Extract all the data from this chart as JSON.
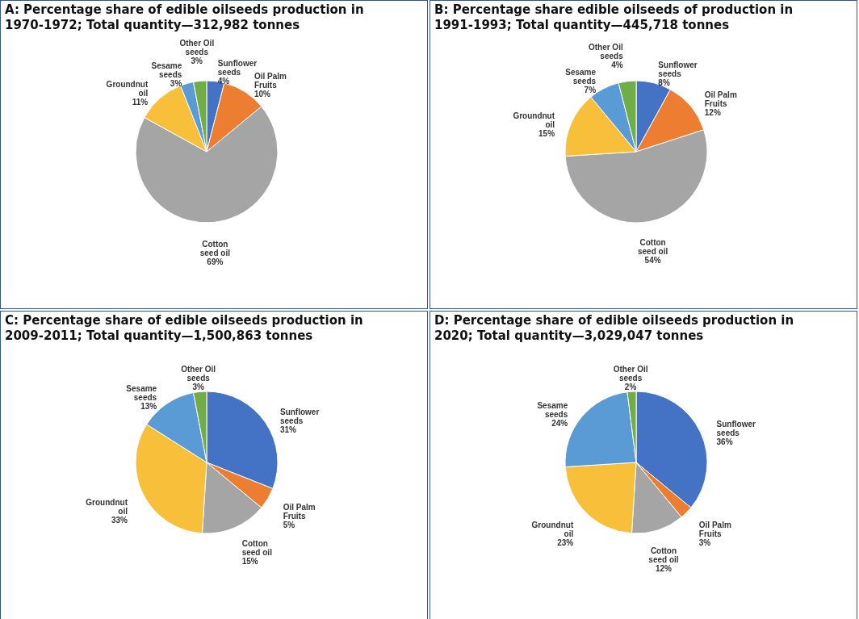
{
  "chart_data": [
    {
      "type": "pie",
      "title": "A: Percentage share of edible oilseeds production in 1970-1972; Total quantity—312,982 tonnes",
      "categories": [
        "Sunflower seeds",
        "Oil Palm Fruits",
        "Cotton seed oil",
        "Groundnut oil",
        "Sesame seeds",
        "Other Oil seeds"
      ],
      "values": [
        4,
        10,
        69,
        11,
        3,
        3
      ],
      "value_labels": [
        "4%",
        "10%",
        "69%",
        "11%",
        "3%",
        "3%"
      ],
      "colors": [
        "#4472c4",
        "#ed7d31",
        "#a5a5a5",
        "#f8bf3a",
        "#5b9bd5",
        "#70ad47"
      ]
    },
    {
      "type": "pie",
      "title": "B: Percentage share edible oilseeds of production in 1991-1993; Total quantity—445,718 tonnes",
      "categories": [
        "Sunflower seeds",
        "Oil Palm Fruits",
        "Cotton seed oil",
        "Groundnut oil",
        "Sesame seeds",
        "Other Oil seeds"
      ],
      "values": [
        8,
        12,
        54,
        15,
        7,
        4
      ],
      "value_labels": [
        "8%",
        "12%",
        "54%",
        "15%",
        "7%",
        "4%"
      ],
      "colors": [
        "#4472c4",
        "#ed7d31",
        "#a5a5a5",
        "#f8bf3a",
        "#5b9bd5",
        "#70ad47"
      ]
    },
    {
      "type": "pie",
      "title": "C: Percentage share of edible oilseeds production in 2009-2011; Total quantity—1,500,863 tonnes",
      "categories": [
        "Sunflower seeds",
        "Oil Palm Fruits",
        "Cotton seed oil",
        "Groundnut oil",
        "Sesame seeds",
        "Other Oil seeds"
      ],
      "values": [
        31,
        5,
        15,
        33,
        13,
        3
      ],
      "value_labels": [
        "31%",
        "5%",
        "15%",
        "33%",
        "13%",
        "3%"
      ],
      "colors": [
        "#4472c4",
        "#ed7d31",
        "#a5a5a5",
        "#f8bf3a",
        "#5b9bd5",
        "#70ad47"
      ]
    },
    {
      "type": "pie",
      "title": "D: Percentage share of edible oilseeds production in 2020; Total quantity—3,029,047 tonnes",
      "categories": [
        "Sunflower seeds",
        "Oil Palm Fruits",
        "Cotton seed oil",
        "Groundnut oil",
        "Sesame seeds",
        "Other Oil seeds"
      ],
      "values": [
        36,
        3,
        12,
        23,
        24,
        2
      ],
      "value_labels": [
        "36%",
        "3%",
        "12%",
        "23%",
        "24%",
        "2%"
      ],
      "colors": [
        "#4472c4",
        "#ed7d31",
        "#a5a5a5",
        "#f8bf3a",
        "#5b9bd5",
        "#70ad47"
      ]
    }
  ]
}
